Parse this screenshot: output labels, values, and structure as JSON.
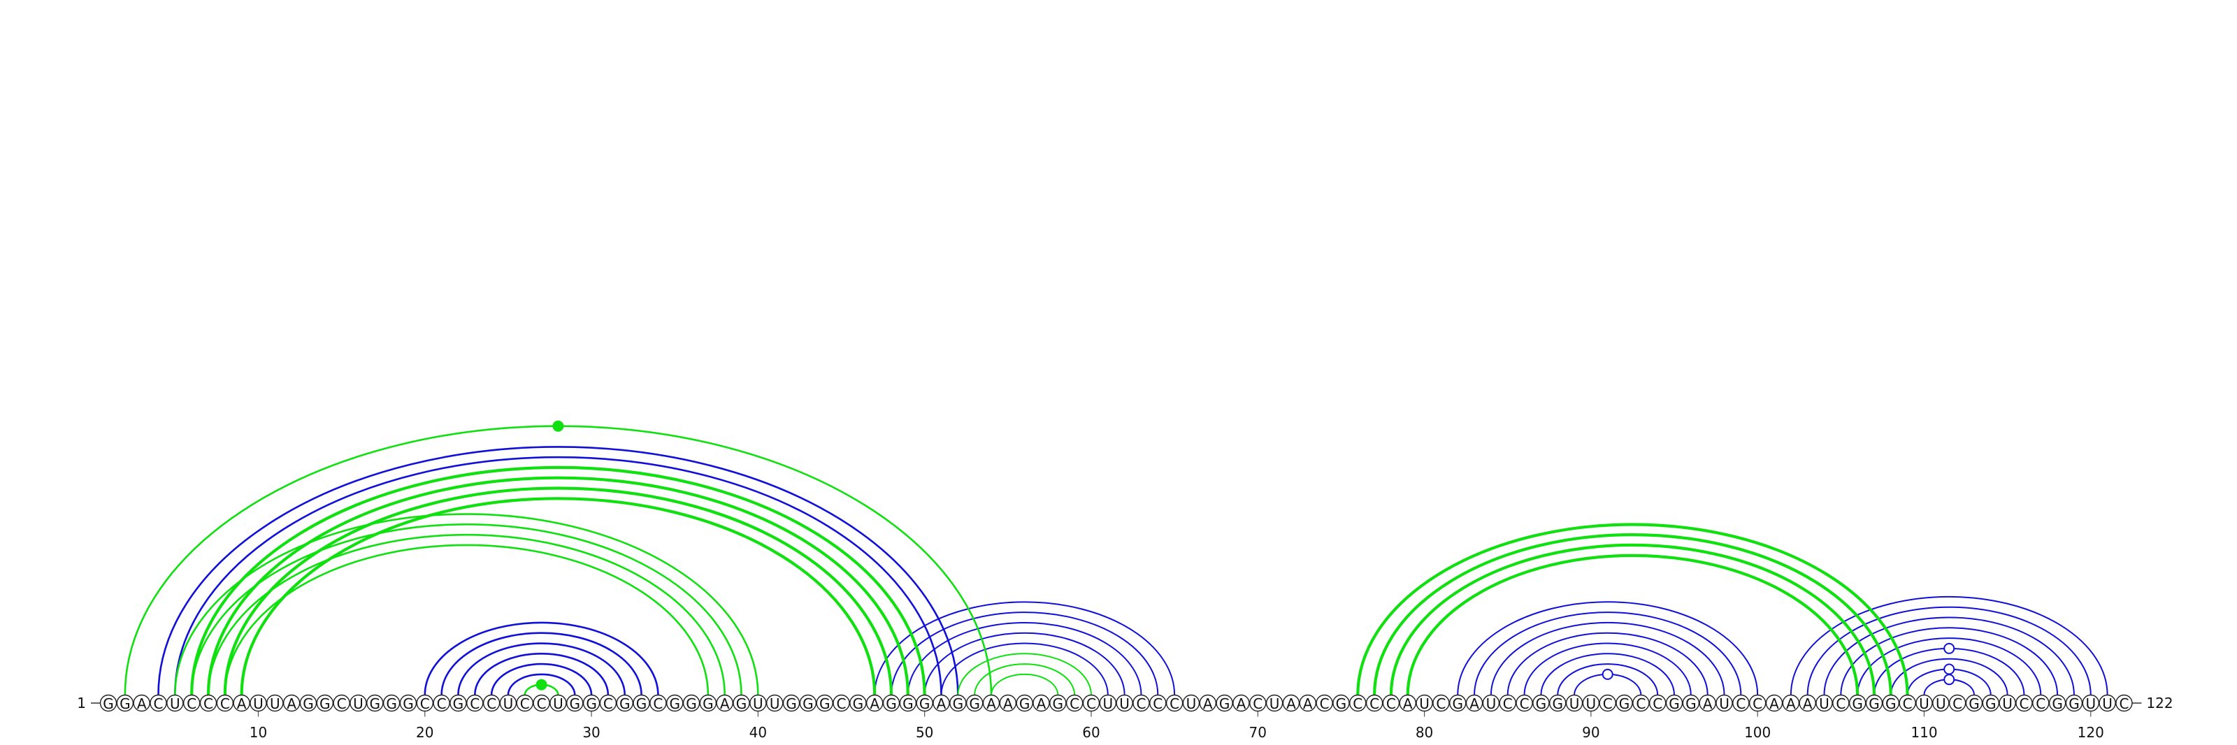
{
  "sequence": "GGACUCCCAUUAGGCUGGGCCGCCUCCUGGCGGCGGGAGUUGGGCGAGGGAGGAAGAGCCUUCCCUAGACUAACGCCCAUCGAUCCGGUUCGCCGGAUCCAAAUCGGGCUUCGGUCCGGUUC",
  "start_label": "1",
  "end_label": "122",
  "ticks": [
    10,
    20,
    30,
    40,
    50,
    60,
    70,
    80,
    90,
    100,
    110,
    120
  ],
  "colors": {
    "blue": "#1010d8",
    "green": "#10e010",
    "backbone": "#333333",
    "nucleotide_fill": "#ffffff",
    "nucleotide_stroke": "#222222"
  },
  "arcs": [
    {
      "i": 4,
      "j": 52,
      "color": "blue",
      "w": 2.6
    },
    {
      "i": 5,
      "j": 51,
      "color": "blue",
      "w": 2.6
    },
    {
      "i": 6,
      "j": 50,
      "color": "blue",
      "w": 2.6
    },
    {
      "i": 7,
      "j": 49,
      "color": "blue",
      "w": 2.6
    },
    {
      "i": 20,
      "j": 34,
      "color": "blue",
      "w": 2.6
    },
    {
      "i": 21,
      "j": 33,
      "color": "blue",
      "w": 2.6
    },
    {
      "i": 22,
      "j": 32,
      "color": "blue",
      "w": 2.6
    },
    {
      "i": 23,
      "j": 31,
      "color": "blue",
      "w": 2.6
    },
    {
      "i": 24,
      "j": 30,
      "color": "blue",
      "w": 2.6
    },
    {
      "i": 25,
      "j": 29,
      "color": "blue",
      "w": 2.6
    },
    {
      "i": 26,
      "j": 28,
      "color": "green",
      "w": 2.6
    },
    {
      "i": 47,
      "j": 65,
      "color": "blue",
      "w": 2.0
    },
    {
      "i": 48,
      "j": 64,
      "color": "blue",
      "w": 2.0
    },
    {
      "i": 49,
      "j": 63,
      "color": "blue",
      "w": 2.0
    },
    {
      "i": 50,
      "j": 62,
      "color": "blue",
      "w": 2.0
    },
    {
      "i": 51,
      "j": 61,
      "color": "blue",
      "w": 2.0
    },
    {
      "i": 52,
      "j": 60,
      "color": "green",
      "w": 2.0
    },
    {
      "i": 53,
      "j": 59,
      "color": "green",
      "w": 2.0
    },
    {
      "i": 54,
      "j": 58,
      "color": "green",
      "w": 2.0
    },
    {
      "i": 82,
      "j": 100,
      "color": "blue",
      "w": 2.0
    },
    {
      "i": 83,
      "j": 99,
      "color": "blue",
      "w": 2.0
    },
    {
      "i": 84,
      "j": 98,
      "color": "blue",
      "w": 2.0
    },
    {
      "i": 85,
      "j": 97,
      "color": "blue",
      "w": 2.0
    },
    {
      "i": 86,
      "j": 96,
      "color": "blue",
      "w": 2.0
    },
    {
      "i": 87,
      "j": 95,
      "color": "blue",
      "w": 2.0
    },
    {
      "i": 88,
      "j": 94,
      "color": "blue",
      "w": 2.0
    },
    {
      "i": 89,
      "j": 93,
      "color": "blue",
      "w": 2.0
    },
    {
      "i": 102,
      "j": 121,
      "color": "blue",
      "w": 2.0
    },
    {
      "i": 103,
      "j": 120,
      "color": "blue",
      "w": 2.0
    },
    {
      "i": 104,
      "j": 119,
      "color": "blue",
      "w": 2.0
    },
    {
      "i": 105,
      "j": 118,
      "color": "blue",
      "w": 2.0
    },
    {
      "i": 106,
      "j": 117,
      "color": "blue",
      "w": 2.0
    },
    {
      "i": 107,
      "j": 116,
      "color": "blue",
      "w": 2.0
    },
    {
      "i": 108,
      "j": 115,
      "color": "blue",
      "w": 2.0
    },
    {
      "i": 109,
      "j": 114,
      "color": "blue",
      "w": 2.0
    },
    {
      "i": 110,
      "j": 113,
      "color": "blue",
      "w": 2.0
    },
    {
      "i": 2,
      "j": 54,
      "color": "green",
      "w": 2.6
    },
    {
      "i": 6,
      "j": 50,
      "color": "green",
      "w": 4.2
    },
    {
      "i": 7,
      "j": 49,
      "color": "green",
      "w": 4.2
    },
    {
      "i": 8,
      "j": 48,
      "color": "green",
      "w": 4.2
    },
    {
      "i": 9,
      "j": 47,
      "color": "green",
      "w": 4.2
    },
    {
      "i": 5,
      "j": 40,
      "color": "green",
      "w": 2.6
    },
    {
      "i": 6,
      "j": 39,
      "color": "green",
      "w": 2.6
    },
    {
      "i": 7,
      "j": 38,
      "color": "green",
      "w": 2.6
    },
    {
      "i": 8,
      "j": 37,
      "color": "green",
      "w": 2.6
    },
    {
      "i": 76,
      "j": 109,
      "color": "green",
      "w": 4.2
    },
    {
      "i": 77,
      "j": 108,
      "color": "green",
      "w": 4.2
    },
    {
      "i": 78,
      "j": 107,
      "color": "green",
      "w": 4.2
    },
    {
      "i": 79,
      "j": 106,
      "color": "green",
      "w": 4.2
    }
  ],
  "markers": [
    {
      "i": 2,
      "j": 54,
      "fill": "green"
    },
    {
      "i": 26,
      "j": 28,
      "fill": "green"
    },
    {
      "i": 89,
      "j": 93,
      "fill": "white",
      "ring": "blue"
    },
    {
      "i": 107,
      "j": 116,
      "fill": "white",
      "ring": "blue"
    },
    {
      "i": 109,
      "j": 114,
      "fill": "white",
      "ring": "blue"
    },
    {
      "i": 110,
      "j": 113,
      "fill": "white",
      "ring": "blue"
    }
  ]
}
